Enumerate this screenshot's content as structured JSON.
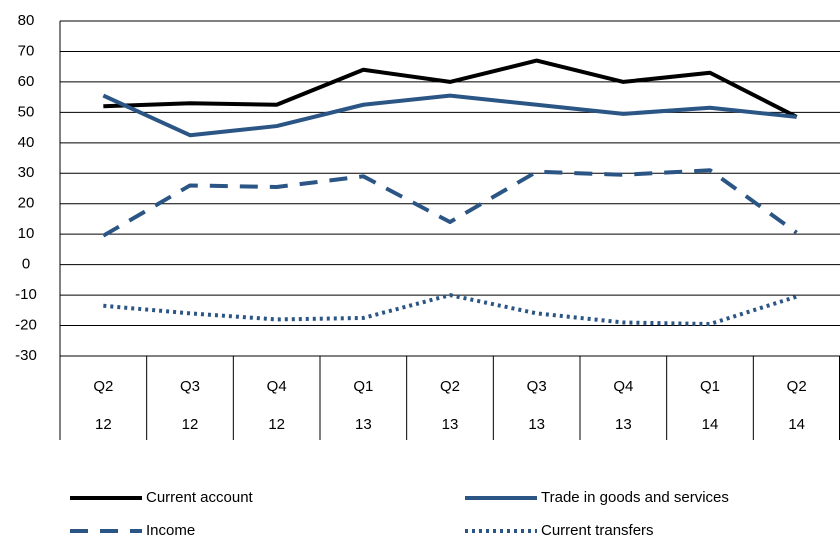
{
  "chart_data": {
    "type": "line",
    "categories": [
      "Q2",
      "Q3",
      "Q4",
      "Q1",
      "Q2",
      "Q3",
      "Q4",
      "Q1",
      "Q2"
    ],
    "category_years": [
      "12",
      "12",
      "12",
      "13",
      "13",
      "13",
      "13",
      "14",
      "14"
    ],
    "series": [
      {
        "name": "Current account",
        "color": "#000000",
        "dash": "solid",
        "values": [
          52,
          53,
          52.5,
          64,
          60,
          67,
          60,
          63,
          48.5
        ]
      },
      {
        "name": "Trade in goods and services",
        "color": "#2a5584",
        "dash": "solid",
        "values": [
          55.5,
          42.5,
          45.5,
          52.5,
          55.5,
          52.5,
          49.5,
          51.5,
          48.5
        ]
      },
      {
        "name": "Income",
        "color": "#2a5584",
        "dash": "dashed",
        "values": [
          9.5,
          26,
          25.5,
          29,
          14,
          30.5,
          29.5,
          31,
          10.5
        ]
      },
      {
        "name": "Current transfers",
        "color": "#2a5584",
        "dash": "dotted",
        "values": [
          -13.5,
          -16,
          -18,
          -17.5,
          -10,
          -16,
          -19,
          -19.5,
          -10.5
        ]
      }
    ],
    "ylim": [
      -30,
      80
    ],
    "yticks": [
      -30,
      -20,
      -10,
      0,
      10,
      20,
      30,
      40,
      50,
      60,
      70,
      80
    ],
    "grid": true
  }
}
